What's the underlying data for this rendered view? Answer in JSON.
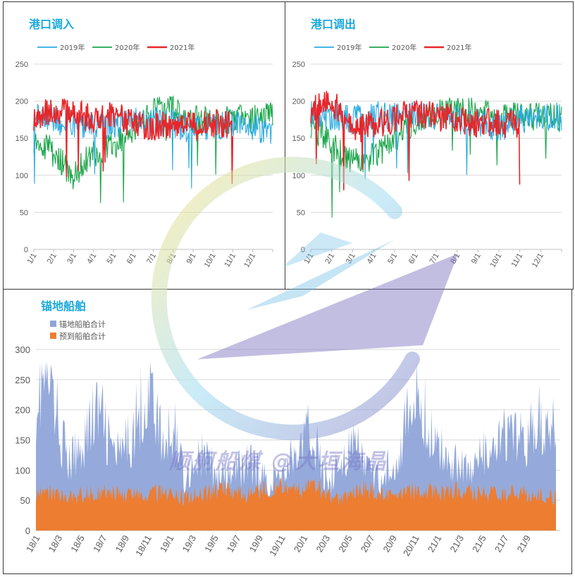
{
  "panels": {
    "inbound": {
      "title": "港口调入"
    },
    "outbound": {
      "title": "港口调出"
    },
    "anchored": {
      "title": "锚地船舶"
    }
  },
  "watermark": {
    "text": "顺舸船煤 @大垣海晶"
  },
  "colors": {
    "y2019": "#29abe2",
    "y2020": "#1aa64a",
    "y2021": "#e8262a",
    "anchored": "#8fa5d9",
    "arriving": "#ed7d31",
    "title": "#1ba9dc",
    "axis_text": "#595959",
    "grid": "#d9d9d9"
  },
  "chart_data": [
    {
      "type": "line",
      "title": "港口调入",
      "x_tick_labels": [
        "1/1",
        "2/1",
        "3/1",
        "4/1",
        "5/1",
        "6/1",
        "7/1",
        "8/1",
        "9/1",
        "10/1",
        "11/1",
        "12/1"
      ],
      "y_ticks": [
        0,
        50,
        100,
        150,
        200,
        250
      ],
      "ylim": [
        0,
        250
      ],
      "grid": true,
      "legend": "top-left",
      "series": [
        {
          "name": "2019年",
          "color": "#29abe2",
          "monthly_values": [
            185,
            175,
            170,
            165,
            170,
            175,
            172,
            170,
            160,
            165,
            170,
            165,
            160
          ]
        },
        {
          "name": "2020年",
          "color": "#1aa64a",
          "monthly_values": [
            150,
            130,
            100,
            130,
            140,
            165,
            185,
            190,
            175,
            175,
            175,
            175,
            180
          ]
        },
        {
          "name": "2021年",
          "color": "#e8262a",
          "monthly_values": [
            180,
            190,
            185,
            175,
            180,
            170,
            165,
            170,
            165,
            170,
            170
          ]
        }
      ]
    },
    {
      "type": "line",
      "title": "港口调出",
      "x_tick_labels": [
        "1/1",
        "2/1",
        "3/1",
        "4/1",
        "5/1",
        "6/1",
        "7/1",
        "8/1",
        "9/1",
        "10/1",
        "11/1",
        "12/1"
      ],
      "y_ticks": [
        0,
        50,
        100,
        150,
        200,
        250
      ],
      "ylim": [
        0,
        250
      ],
      "grid": true,
      "legend": "top-left",
      "series": [
        {
          "name": "2019年",
          "color": "#29abe2",
          "monthly_values": [
            185,
            180,
            175,
            180,
            180,
            180,
            180,
            175,
            170,
            165,
            175,
            180,
            180
          ]
        },
        {
          "name": "2020年",
          "color": "#1aa64a",
          "monthly_values": [
            170,
            140,
            120,
            125,
            150,
            175,
            185,
            185,
            185,
            175,
            180,
            180,
            175
          ]
        },
        {
          "name": "2021年",
          "color": "#e8262a",
          "monthly_values": [
            190,
            200,
            160,
            170,
            175,
            185,
            180,
            175,
            170,
            170,
            170
          ]
        }
      ]
    },
    {
      "type": "area",
      "title": "锚地船舶",
      "x_tick_labels": [
        "18/1",
        "18/3",
        "18/5",
        "18/7",
        "18/9",
        "18/11",
        "19/1",
        "19/3",
        "19/5",
        "19/7",
        "19/9",
        "19/11",
        "20/1",
        "20/3",
        "20/5",
        "20/7",
        "20/9",
        "20/11",
        "21/1",
        "21/3",
        "21/5",
        "21/7",
        "21/9"
      ],
      "y_ticks": [
        0,
        50,
        100,
        150,
        200,
        250,
        300
      ],
      "ylim": [
        0,
        300
      ],
      "grid": true,
      "legend": "top-left",
      "series": [
        {
          "name": "锚地船舶合计",
          "color": "#8fa5d9",
          "monthly_values": [
            215,
            255,
            190,
            110,
            130,
            175,
            200,
            140,
            120,
            160,
            210,
            230,
            130,
            180,
            90,
            115,
            125,
            90,
            85,
            100,
            115,
            95,
            80,
            90,
            120,
            135,
            170,
            95,
            90,
            125,
            140,
            115,
            80,
            100,
            125,
            180,
            225,
            170,
            130,
            125,
            110,
            100,
            125,
            120,
            155,
            150,
            150,
            175,
            185,
            160
          ]
        },
        {
          "name": "预到船舶合计",
          "color": "#ed7d31",
          "monthly_values": [
            60,
            65,
            60,
            55,
            58,
            60,
            62,
            65,
            60,
            58,
            62,
            64,
            60,
            58,
            55,
            60,
            62,
            65,
            66,
            62,
            60,
            65,
            70,
            75,
            72,
            70,
            70,
            65,
            55,
            50,
            65,
            70,
            65,
            55,
            60,
            62,
            65,
            66,
            62,
            65,
            66,
            65,
            62,
            60,
            60,
            62,
            60,
            60,
            58,
            55
          ]
        }
      ]
    }
  ]
}
